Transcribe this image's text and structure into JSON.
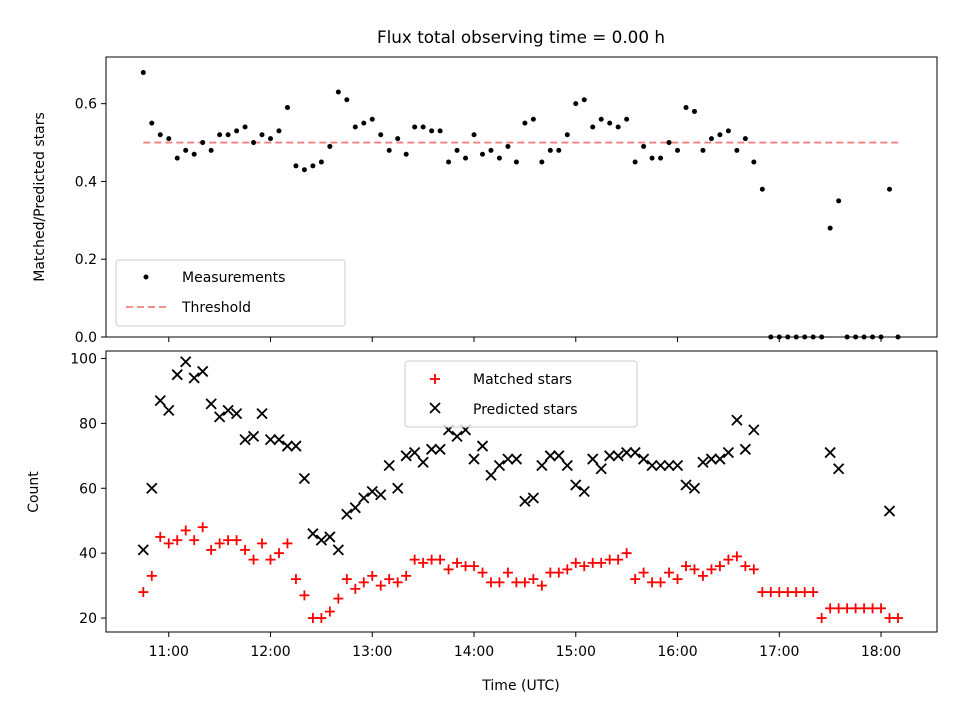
{
  "chart_data": [
    {
      "type": "scatter",
      "title": "Flux total observing time = 0.00 h",
      "xlabel": "",
      "ylabel": "Matched/Predicted stars",
      "xlim": [
        "10:23",
        "18:33"
      ],
      "ylim": [
        0,
        0.72
      ],
      "x_ticks": [
        "11:00",
        "12:00",
        "13:00",
        "14:00",
        "15:00",
        "16:00",
        "17:00",
        "18:00"
      ],
      "y_ticks": [
        "0.0",
        "0.2",
        "0.4",
        "0.6"
      ],
      "grid": false,
      "legend": {
        "placement": "lower-left",
        "entries": [
          "Measurements",
          "Threshold"
        ]
      },
      "series": [
        {
          "name": "Measurements",
          "marker": "dot",
          "color": "#000000",
          "x": [
            "10:45",
            "10:50",
            "10:55",
            "11:00",
            "11:05",
            "11:10",
            "11:15",
            "11:20",
            "11:25",
            "11:30",
            "11:35",
            "11:40",
            "11:45",
            "11:50",
            "11:55",
            "12:00",
            "12:05",
            "12:10",
            "12:15",
            "12:20",
            "12:25",
            "12:30",
            "12:35",
            "12:40",
            "12:45",
            "12:50",
            "12:55",
            "13:00",
            "13:05",
            "13:10",
            "13:15",
            "13:20",
            "13:25",
            "13:30",
            "13:35",
            "13:40",
            "13:45",
            "13:50",
            "13:55",
            "14:00",
            "14:05",
            "14:10",
            "14:15",
            "14:20",
            "14:25",
            "14:30",
            "14:35",
            "14:40",
            "14:45",
            "14:50",
            "14:55",
            "15:00",
            "15:05",
            "15:10",
            "15:15",
            "15:20",
            "15:25",
            "15:30",
            "15:35",
            "15:40",
            "15:45",
            "15:50",
            "15:55",
            "16:00",
            "16:05",
            "16:10",
            "16:15",
            "16:20",
            "16:25",
            "16:30",
            "16:35",
            "16:40",
            "16:45",
            "16:50",
            "16:55",
            "17:00",
            "17:05",
            "17:10",
            "17:15",
            "17:20",
            "17:25",
            "17:30",
            "17:35",
            "17:40",
            "17:45",
            "17:50",
            "17:55",
            "18:00",
            "18:05",
            "18:10"
          ],
          "y": [
            0.68,
            0.55,
            0.52,
            0.51,
            0.46,
            0.48,
            0.47,
            0.5,
            0.48,
            0.52,
            0.52,
            0.53,
            0.54,
            0.5,
            0.52,
            0.51,
            0.53,
            0.59,
            0.44,
            0.43,
            0.44,
            0.45,
            0.49,
            0.63,
            0.61,
            0.54,
            0.55,
            0.56,
            0.52,
            0.48,
            0.51,
            0.47,
            0.54,
            0.54,
            0.53,
            0.53,
            0.45,
            0.48,
            0.46,
            0.52,
            0.47,
            0.48,
            0.46,
            0.49,
            0.45,
            0.55,
            0.56,
            0.45,
            0.48,
            0.48,
            0.52,
            0.6,
            0.61,
            0.54,
            0.56,
            0.55,
            0.54,
            0.56,
            0.45,
            0.49,
            0.46,
            0.46,
            0.5,
            0.48,
            0.59,
            0.58,
            0.48,
            0.51,
            0.52,
            0.53,
            0.48,
            0.51,
            0.45,
            0.38,
            0,
            0,
            0,
            0,
            0,
            0,
            0,
            0.28,
            0.35,
            0,
            0,
            0,
            0,
            0,
            0.38,
            0
          ]
        },
        {
          "name": "Threshold",
          "line_style": "dashed",
          "color": "#f08080",
          "x": [
            "10:45",
            "18:10"
          ],
          "y": [
            0.5,
            0.5
          ]
        }
      ]
    },
    {
      "type": "scatter",
      "title": "",
      "xlabel": "Time (UTC)",
      "ylabel": "Count",
      "xlim": [
        "10:23",
        "18:33"
      ],
      "ylim": [
        15.7,
        102.3
      ],
      "x_ticks": [
        "11:00",
        "12:00",
        "13:00",
        "14:00",
        "15:00",
        "16:00",
        "17:00",
        "18:00"
      ],
      "y_ticks": [
        "20",
        "40",
        "60",
        "80",
        "100"
      ],
      "grid": false,
      "legend": {
        "placement": "top-center",
        "entries": [
          "Matched stars",
          "Predicted stars"
        ]
      },
      "series": [
        {
          "name": "Matched stars",
          "marker": "plus",
          "color": "#ff0000",
          "x": [
            "10:45",
            "10:50",
            "10:55",
            "11:00",
            "11:05",
            "11:10",
            "11:15",
            "11:20",
            "11:25",
            "11:30",
            "11:35",
            "11:40",
            "11:45",
            "11:50",
            "11:55",
            "12:00",
            "12:05",
            "12:10",
            "12:15",
            "12:20",
            "12:25",
            "12:30",
            "12:35",
            "12:40",
            "12:45",
            "12:50",
            "12:55",
            "13:00",
            "13:05",
            "13:10",
            "13:15",
            "13:20",
            "13:25",
            "13:30",
            "13:35",
            "13:40",
            "13:45",
            "13:50",
            "13:55",
            "14:00",
            "14:05",
            "14:10",
            "14:15",
            "14:20",
            "14:25",
            "14:30",
            "14:35",
            "14:40",
            "14:45",
            "14:50",
            "14:55",
            "15:00",
            "15:05",
            "15:10",
            "15:15",
            "15:20",
            "15:25",
            "15:30",
            "15:35",
            "15:40",
            "15:45",
            "15:50",
            "15:55",
            "16:00",
            "16:05",
            "16:10",
            "16:15",
            "16:20",
            "16:25",
            "16:30",
            "16:35",
            "16:40",
            "16:45",
            "16:50",
            "16:55",
            "17:00",
            "17:05",
            "17:10",
            "17:15",
            "17:20",
            "17:25",
            "17:30",
            "17:35",
            "17:40",
            "17:45",
            "17:50",
            "17:55",
            "18:00",
            "18:05",
            "18:10"
          ],
          "y": [
            28,
            33,
            45,
            43,
            44,
            47,
            44,
            48,
            41,
            43,
            44,
            44,
            41,
            38,
            43,
            38,
            40,
            43,
            32,
            27,
            20,
            20,
            22,
            26,
            32,
            29,
            31,
            33,
            30,
            32,
            31,
            33,
            38,
            37,
            38,
            38,
            35,
            37,
            36,
            36,
            34,
            31,
            31,
            34,
            31,
            31,
            32,
            30,
            34,
            34,
            35,
            37,
            36,
            37,
            37,
            38,
            38,
            40,
            32,
            34,
            31,
            31,
            34,
            32,
            36,
            35,
            33,
            35,
            36,
            38,
            39,
            36,
            35,
            28,
            28,
            28,
            28,
            28,
            28,
            28,
            20,
            23,
            23,
            23,
            23,
            23,
            23,
            23,
            20,
            20
          ]
        },
        {
          "name": "Predicted stars",
          "marker": "x",
          "color": "#000000",
          "x": [
            "10:45",
            "10:50",
            "10:55",
            "11:00",
            "11:05",
            "11:10",
            "11:15",
            "11:20",
            "11:25",
            "11:30",
            "11:35",
            "11:40",
            "11:45",
            "11:50",
            "11:55",
            "12:00",
            "12:05",
            "12:10",
            "12:15",
            "12:20",
            "12:25",
            "12:30",
            "12:35",
            "12:40",
            "12:45",
            "12:50",
            "12:55",
            "13:00",
            "13:05",
            "13:10",
            "13:15",
            "13:20",
            "13:25",
            "13:30",
            "13:35",
            "13:40",
            "13:45",
            "13:50",
            "13:55",
            "14:00",
            "14:05",
            "14:10",
            "14:15",
            "14:20",
            "14:25",
            "14:30",
            "14:35",
            "14:40",
            "14:45",
            "14:50",
            "14:55",
            "15:00",
            "15:05",
            "15:10",
            "15:15",
            "15:20",
            "15:25",
            "15:30",
            "15:35",
            "15:40",
            "15:45",
            "15:50",
            "15:55",
            "16:00",
            "16:05",
            "16:10",
            "16:15",
            "16:20",
            "16:25",
            "16:30",
            "16:35",
            "16:40",
            "16:45",
            "17:30",
            "17:35",
            "18:05"
          ],
          "y": [
            41,
            60,
            87,
            84,
            95,
            99,
            94,
            96,
            86,
            82,
            84,
            83,
            75,
            76,
            83,
            75,
            75,
            73,
            73,
            63,
            46,
            44,
            45,
            41,
            52,
            54,
            57,
            59,
            58,
            67,
            60,
            70,
            71,
            68,
            72,
            72,
            78,
            76,
            78,
            69,
            73,
            64,
            67,
            69,
            69,
            56,
            57,
            67,
            70,
            70,
            67,
            61,
            59,
            69,
            66,
            70,
            70,
            71,
            71,
            69,
            67,
            67,
            67,
            67,
            61,
            60,
            68,
            69,
            69,
            71,
            81,
            72,
            78,
            71,
            66,
            53
          ]
        }
      ]
    }
  ]
}
